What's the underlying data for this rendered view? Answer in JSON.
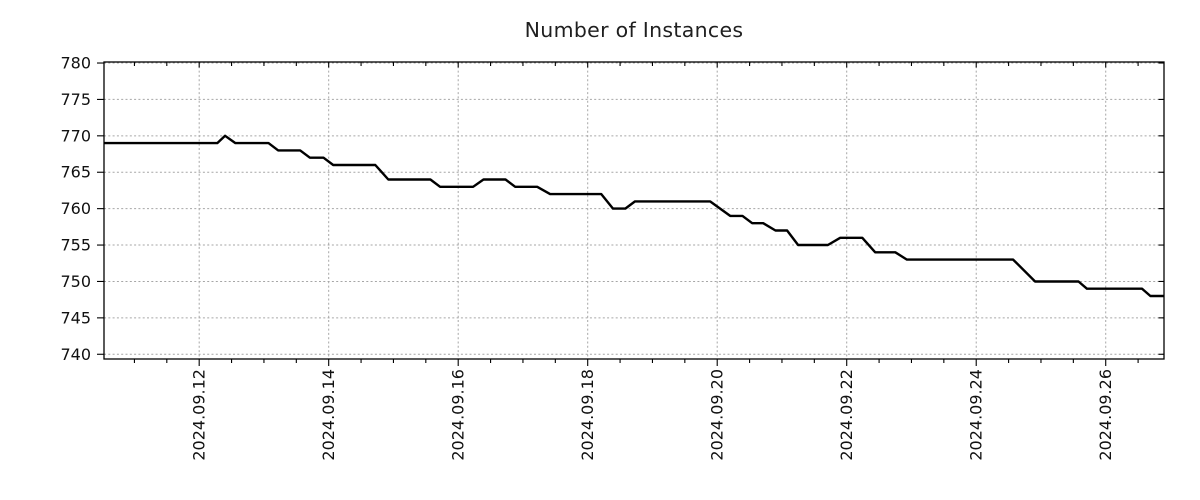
{
  "chart_data": {
    "type": "line",
    "title": "Number of Instances",
    "xlabel": "",
    "ylabel": "",
    "legend": "none",
    "grid": {
      "show": true,
      "color": "#a6a6a6",
      "style": "dashed"
    },
    "line_color": "#000000",
    "line_width": 2.4,
    "x_axis": {
      "unit": "date (days of 2024-09)",
      "range_days": [
        10.53,
        26.9
      ],
      "major_tick_days": [
        12,
        14,
        16,
        18,
        20,
        22,
        24,
        26
      ],
      "tick_labels": [
        "2024.09.12",
        "2024.09.14",
        "2024.09.16",
        "2024.09.18",
        "2024.09.20",
        "2024.09.22",
        "2024.09.24",
        "2024.09.26"
      ],
      "minor_tick_interval_days": 0.5,
      "label_rotation_deg": -90
    },
    "y_axis": {
      "range": [
        739.35,
        780.14
      ],
      "ticks": [
        740,
        745,
        750,
        755,
        760,
        765,
        770,
        775,
        780
      ],
      "tick_labels": [
        "740",
        "745",
        "750",
        "755",
        "760",
        "765",
        "770",
        "775",
        "780"
      ]
    },
    "series": [
      {
        "name": "instances",
        "points_day_value": [
          [
            10.53,
            769
          ],
          [
            12.28,
            769
          ],
          [
            12.4,
            770
          ],
          [
            12.56,
            769
          ],
          [
            13.07,
            769
          ],
          [
            13.22,
            768
          ],
          [
            13.56,
            768
          ],
          [
            13.71,
            767
          ],
          [
            13.92,
            767
          ],
          [
            14.07,
            766
          ],
          [
            14.72,
            766
          ],
          [
            14.92,
            764
          ],
          [
            15.57,
            764
          ],
          [
            15.72,
            763
          ],
          [
            16.23,
            763
          ],
          [
            16.39,
            764
          ],
          [
            16.73,
            764
          ],
          [
            16.88,
            763
          ],
          [
            17.22,
            763
          ],
          [
            17.42,
            762
          ],
          [
            18.21,
            762
          ],
          [
            18.39,
            760
          ],
          [
            18.58,
            760
          ],
          [
            18.73,
            761
          ],
          [
            19.89,
            761
          ],
          [
            20.2,
            759
          ],
          [
            20.39,
            759
          ],
          [
            20.54,
            758
          ],
          [
            20.71,
            758
          ],
          [
            20.9,
            757
          ],
          [
            21.08,
            757
          ],
          [
            21.25,
            755
          ],
          [
            21.71,
            755
          ],
          [
            21.9,
            756
          ],
          [
            22.24,
            756
          ],
          [
            22.44,
            754
          ],
          [
            22.75,
            754
          ],
          [
            22.93,
            753
          ],
          [
            24.57,
            753
          ],
          [
            24.91,
            750
          ],
          [
            25.58,
            750
          ],
          [
            25.71,
            749
          ],
          [
            26.56,
            749
          ],
          [
            26.69,
            748
          ],
          [
            26.9,
            748
          ]
        ]
      }
    ]
  }
}
